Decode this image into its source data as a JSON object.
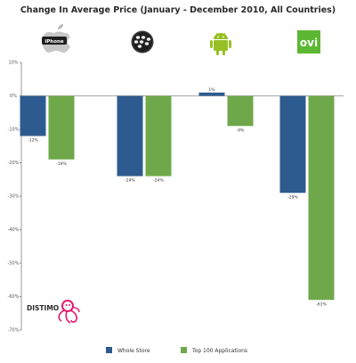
{
  "chart_data": {
    "type": "bar",
    "title": "Change In Average Price (January - December 2010, All Countries)",
    "categories": [
      "iPhone",
      "BlackBerry",
      "Android",
      "Ovi"
    ],
    "category_icons": [
      "apple-iphone-logo",
      "blackberry-logo",
      "android-logo",
      "ovi-logo"
    ],
    "category_icon_text": [
      "iPhone",
      "",
      "",
      "ovi"
    ],
    "series": [
      {
        "name": "Whole Store",
        "color": "#2e5b8f",
        "values": [
          -12,
          -24,
          1,
          -29
        ],
        "labels": [
          "-12%",
          "-24%",
          "1%",
          "-29%"
        ]
      },
      {
        "name": "Top 100 Applications",
        "color": "#6fa84a",
        "values": [
          -19,
          -24,
          -9,
          -61
        ],
        "labels": [
          "-19%",
          "-24%",
          "-9%",
          "-61%"
        ]
      }
    ],
    "ylim": [
      -70,
      10
    ],
    "yticks": [
      10,
      0,
      -10,
      -20,
      -30,
      -40,
      -50,
      -60,
      -70
    ],
    "ytick_labels": [
      "10%",
      "0%",
      "-10%",
      "-20%",
      "-30%",
      "-40%",
      "-50%",
      "-60%",
      "-70%"
    ],
    "grid": false,
    "legend_position": "bottom"
  },
  "watermark": {
    "brand": "DISTIMO",
    "icon": "octopus-mascot-icon"
  }
}
